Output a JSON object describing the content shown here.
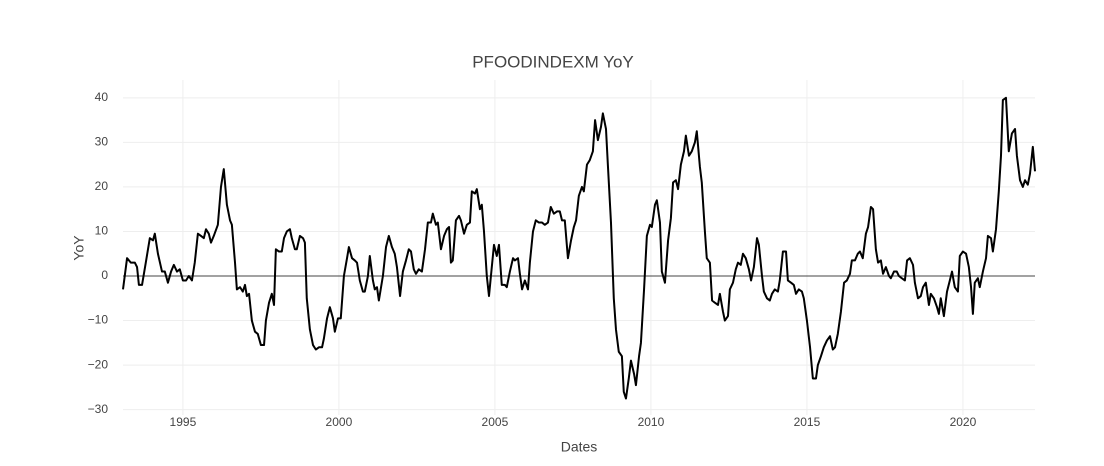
{
  "chart_data": {
    "type": "line",
    "title": "PFOODINDEXM YoY",
    "x_label": "Dates",
    "y_label": "YoY",
    "color": "#000000",
    "grid": true,
    "zeroline": true,
    "xlim": [
      1993.08,
      2022.31
    ],
    "xticks": [
      1995,
      2000,
      2005,
      2010,
      2015,
      2020
    ],
    "ylim": [
      -31.2,
      44
    ],
    "yticks": [
      {
        "value": -30,
        "label": "−30"
      },
      {
        "value": -20,
        "label": "−20"
      },
      {
        "value": -10,
        "label": "−10"
      },
      0,
      10,
      20,
      30,
      40
    ],
    "x": [
      1993.08,
      1993.21,
      1993.33,
      1993.46,
      1993.53,
      1993.59,
      1993.69,
      1993.81,
      1993.94,
      1994.04,
      1994.1,
      1994.2,
      1994.33,
      1994.42,
      1994.52,
      1994.62,
      1994.71,
      1994.81,
      1994.9,
      1995.0,
      1995.1,
      1995.19,
      1995.29,
      1995.38,
      1995.48,
      1995.58,
      1995.67,
      1995.74,
      1995.83,
      1995.9,
      1995.99,
      1996.12,
      1996.22,
      1996.31,
      1996.41,
      1996.51,
      1996.57,
      1996.67,
      1996.73,
      1996.83,
      1996.92,
      1996.99,
      1997.05,
      1997.12,
      1997.21,
      1997.31,
      1997.4,
      1997.5,
      1997.6,
      1997.66,
      1997.76,
      1997.85,
      1997.92,
      1997.98,
      1998.08,
      1998.17,
      1998.24,
      1998.33,
      1998.43,
      1998.49,
      1998.59,
      1998.65,
      1998.75,
      1998.85,
      1998.91,
      1998.97,
      1999.07,
      1999.17,
      1999.26,
      1999.36,
      1999.46,
      1999.52,
      1999.62,
      1999.71,
      1999.81,
      1999.87,
      1999.97,
      2000.06,
      2000.16,
      2000.26,
      2000.32,
      2000.42,
      2000.51,
      2000.58,
      2000.67,
      2000.77,
      2000.83,
      2000.93,
      2000.99,
      2001.09,
      2001.15,
      2001.22,
      2001.28,
      2001.41,
      2001.51,
      2001.6,
      2001.7,
      2001.79,
      2001.86,
      2001.96,
      2002.05,
      2002.15,
      2002.24,
      2002.31,
      2002.4,
      2002.47,
      2002.56,
      2002.66,
      2002.76,
      2002.85,
      2002.95,
      2003.01,
      2003.11,
      2003.17,
      2003.27,
      2003.37,
      2003.46,
      2003.53,
      2003.59,
      2003.65,
      2003.75,
      2003.85,
      2003.91,
      2004.01,
      2004.1,
      2004.2,
      2004.26,
      2004.36,
      2004.42,
      2004.52,
      2004.58,
      2004.65,
      2004.74,
      2004.81,
      2004.9,
      2004.97,
      2005.06,
      2005.13,
      2005.22,
      2005.32,
      2005.38,
      2005.48,
      2005.58,
      2005.64,
      2005.74,
      2005.8,
      2005.87,
      2005.96,
      2006.06,
      2006.12,
      2006.22,
      2006.31,
      2006.41,
      2006.51,
      2006.6,
      2006.7,
      2006.79,
      2006.89,
      2006.99,
      2007.08,
      2007.15,
      2007.24,
      2007.34,
      2007.44,
      2007.53,
      2007.6,
      2007.69,
      2007.79,
      2007.85,
      2007.95,
      2008.04,
      2008.14,
      2008.21,
      2008.3,
      2008.4,
      2008.46,
      2008.56,
      2008.62,
      2008.72,
      2008.81,
      2008.88,
      2008.97,
      2009.07,
      2009.13,
      2009.2,
      2009.29,
      2009.36,
      2009.46,
      2009.52,
      2009.62,
      2009.68,
      2009.78,
      2009.87,
      2009.97,
      2010.03,
      2010.13,
      2010.19,
      2010.29,
      2010.35,
      2010.45,
      2010.55,
      2010.64,
      2010.71,
      2010.8,
      2010.87,
      2010.96,
      2011.06,
      2011.12,
      2011.22,
      2011.31,
      2011.41,
      2011.47,
      2011.57,
      2011.63,
      2011.73,
      2011.79,
      2011.89,
      2011.96,
      2012.05,
      2012.15,
      2012.21,
      2012.31,
      2012.37,
      2012.47,
      2012.53,
      2012.63,
      2012.72,
      2012.79,
      2012.88,
      2012.95,
      2013.04,
      2013.14,
      2013.21,
      2013.3,
      2013.4,
      2013.46,
      2013.56,
      2013.62,
      2013.72,
      2013.81,
      2013.88,
      2013.97,
      2014.07,
      2014.13,
      2014.23,
      2014.33,
      2014.39,
      2014.49,
      2014.58,
      2014.65,
      2014.74,
      2014.84,
      2014.9,
      2015.0,
      2015.1,
      2015.19,
      2015.29,
      2015.35,
      2015.45,
      2015.54,
      2015.64,
      2015.74,
      2015.83,
      2015.9,
      2015.99,
      2016.09,
      2016.19,
      2016.28,
      2016.38,
      2016.44,
      2016.54,
      2016.63,
      2016.7,
      2016.79,
      2016.89,
      2016.96,
      2017.05,
      2017.12,
      2017.21,
      2017.28,
      2017.37,
      2017.44,
      2017.53,
      2017.63,
      2017.69,
      2017.79,
      2017.88,
      2017.95,
      2018.04,
      2018.14,
      2018.21,
      2018.3,
      2018.4,
      2018.46,
      2018.56,
      2018.65,
      2018.72,
      2018.81,
      2018.91,
      2018.97,
      2019.07,
      2019.17,
      2019.23,
      2019.29,
      2019.39,
      2019.49,
      2019.58,
      2019.65,
      2019.74,
      2019.84,
      2019.9,
      2020.0,
      2020.1,
      2020.19,
      2020.26,
      2020.32,
      2020.38,
      2020.48,
      2020.54,
      2020.64,
      2020.74,
      2020.8,
      2020.9,
      2020.96,
      2021.06,
      2021.15,
      2021.22,
      2021.28,
      2021.38,
      2021.47,
      2021.57,
      2021.67,
      2021.73,
      2021.83,
      2021.92,
      2021.99,
      2022.08,
      2022.15,
      2022.24,
      2022.31
    ],
    "values": [
      -3,
      4,
      3,
      3,
      2,
      -2,
      -2,
      3,
      8.5,
      8,
      9.5,
      5,
      1,
      1,
      -1.5,
      1,
      2.5,
      1,
      1.5,
      -1,
      -1,
      0,
      -1,
      3,
      9.5,
      9,
      8.5,
      10.5,
      9.5,
      7.5,
      9,
      11.5,
      20,
      24,
      16,
      12.5,
      11.5,
      3,
      -3,
      -2.5,
      -3.5,
      -2,
      -4.5,
      -4,
      -10,
      -12.5,
      -13,
      -15.5,
      -15.5,
      -10,
      -6,
      -4,
      -6.5,
      6,
      5.5,
      5.5,
      8.5,
      10,
      10.5,
      8.5,
      6,
      6,
      9,
      8.5,
      7.5,
      -5,
      -12,
      -15.5,
      -16.5,
      -16,
      -16,
      -14,
      -9.5,
      -7,
      -9.5,
      -12.5,
      -9.5,
      -9.5,
      0,
      4,
      6.5,
      4,
      3.5,
      3,
      -1,
      -3.5,
      -3.5,
      0,
      4.5,
      -1,
      -3,
      -2.5,
      -5.5,
      0,
      6.5,
      9,
      6.5,
      5,
      2,
      -4.5,
      1,
      3.5,
      6,
      5.5,
      1.5,
      0.5,
      1.5,
      1,
      6,
      12,
      12,
      14,
      11.5,
      12,
      6,
      9,
      10.5,
      11,
      3,
      3.5,
      12.5,
      13.5,
      12.5,
      9.5,
      11.5,
      12,
      19,
      18.5,
      19.5,
      15,
      16,
      10,
      0,
      -4.5,
      2,
      7,
      4.5,
      7,
      -2,
      -2,
      -2.5,
      1,
      4,
      3.5,
      4,
      0.5,
      -3,
      -1,
      -3,
      3,
      10,
      12.5,
      12,
      12,
      11.5,
      12,
      15.5,
      14,
      14.5,
      14.5,
      12.5,
      12.5,
      4,
      8,
      11,
      12.5,
      18,
      20,
      19,
      25,
      26,
      28,
      35,
      30.5,
      33.5,
      36.5,
      33,
      25,
      12,
      -5,
      -12,
      -17,
      -18,
      -26,
      -27.5,
      -23,
      -19,
      -22,
      -24.5,
      -18,
      -15,
      -3,
      9,
      11.5,
      11,
      16,
      17,
      12,
      1,
      -1.5,
      8,
      13,
      21,
      21.5,
      19.5,
      25,
      28,
      31.5,
      27,
      28,
      30,
      32.5,
      24.5,
      21,
      10,
      4,
      3,
      -5.5,
      -6,
      -6.5,
      -4,
      -8,
      -10,
      -9,
      -3,
      -1.5,
      1.5,
      3,
      2.5,
      5,
      4,
      1.5,
      -1,
      2,
      8.5,
      7,
      0,
      -3.5,
      -5,
      -5.5,
      -4,
      -3,
      -3.5,
      -1,
      5.5,
      5.5,
      -1,
      -1.5,
      -2,
      -4,
      -3,
      -3.5,
      -5,
      -10,
      -16,
      -23,
      -23,
      -20,
      -18,
      -16,
      -14.5,
      -13.5,
      -16.5,
      -16,
      -13,
      -8,
      -1.5,
      -1,
      0.5,
      3.5,
      3.5,
      5,
      5.5,
      4,
      9.5,
      11,
      15.5,
      15,
      6,
      3,
      3.5,
      0.5,
      2,
      0,
      -0.5,
      1,
      1,
      0,
      -0.5,
      -1,
      3.5,
      4,
      2.5,
      -1.5,
      -5,
      -4.5,
      -2.5,
      -1.5,
      -6.5,
      -4,
      -5,
      -7,
      -8.5,
      -5,
      -9,
      -3.5,
      -1,
      1,
      -2.5,
      -3.5,
      4.5,
      5.5,
      5,
      2,
      -2.5,
      -8.5,
      -1.5,
      -0.5,
      -2.5,
      1,
      4,
      9,
      8.5,
      5.5,
      10.5,
      19,
      27,
      39.5,
      40,
      28,
      32,
      33,
      27,
      21.5,
      20,
      21.5,
      20.5,
      23,
      29,
      23.5
    ]
  }
}
